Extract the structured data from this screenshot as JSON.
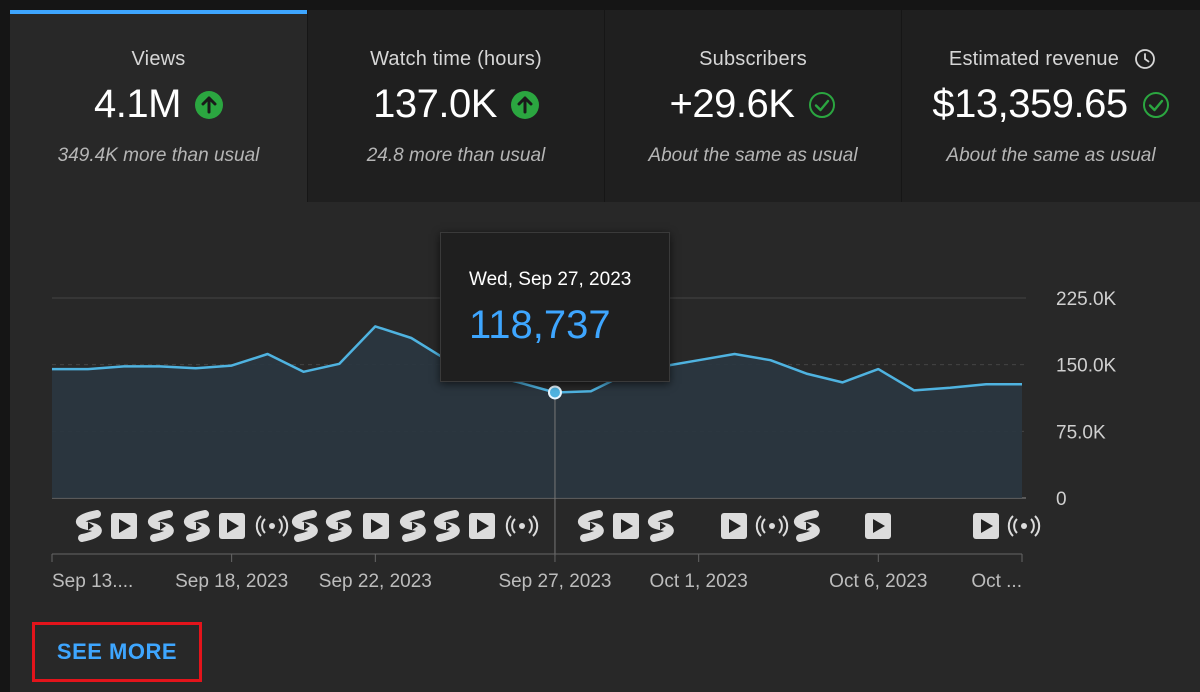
{
  "metrics": [
    {
      "label": "Views",
      "value": "4.1M",
      "note": "349.4K more than usual",
      "status": "up"
    },
    {
      "label": "Watch time (hours)",
      "value": "137.0K",
      "note": "24.8 more than usual",
      "status": "up"
    },
    {
      "label": "Subscribers",
      "value": "+29.6K",
      "note": "About the same as usual",
      "status": "same"
    },
    {
      "label": "Estimated revenue",
      "value": "$13,359.65",
      "note": "About the same as usual",
      "status": "same"
    }
  ],
  "tooltip": {
    "date": "Wed, Sep 27, 2023",
    "value": "118,737"
  },
  "see_more_label": "SEE MORE",
  "colors": {
    "accent": "#3ea6ff",
    "up": "#2ba640",
    "check": "#2ba640",
    "line": "#4fb3e0",
    "highlight": "#e3141b"
  },
  "chart_data": {
    "type": "area",
    "y_ticks": [
      "225.0K",
      "150.0K",
      "75.0K",
      "0"
    ],
    "ylim": [
      0,
      225000
    ],
    "x_tick_labels": [
      "Sep 13....",
      "Sep 18, 2023",
      "Sep 22, 2023",
      "Sep 27, 2023",
      "Oct 1, 2023",
      "Oct 6, 2023",
      "Oct ..."
    ],
    "dates": [
      "2023-09-13",
      "2023-09-14",
      "2023-09-15",
      "2023-09-16",
      "2023-09-17",
      "2023-09-18",
      "2023-09-19",
      "2023-09-20",
      "2023-09-21",
      "2023-09-22",
      "2023-09-23",
      "2023-09-24",
      "2023-09-25",
      "2023-09-26",
      "2023-09-27",
      "2023-09-28",
      "2023-09-29",
      "2023-09-30",
      "2023-10-01",
      "2023-10-02",
      "2023-10-03",
      "2023-10-04",
      "2023-10-05",
      "2023-10-06",
      "2023-10-07",
      "2023-10-08",
      "2023-10-09",
      "2023-10-10"
    ],
    "values": [
      145000,
      145000,
      148000,
      148000,
      146000,
      149000,
      162000,
      142000,
      151000,
      193000,
      180000,
      155000,
      140000,
      130000,
      118737,
      120000,
      140000,
      148000,
      155000,
      162000,
      155000,
      140000,
      130000,
      145000,
      121000,
      124000,
      128000,
      128000
    ],
    "highlight_date": "2023-09-27",
    "event_markers": [
      "short",
      "video",
      "short",
      "short",
      "video",
      "live",
      "short",
      "short",
      "video",
      "short",
      "short",
      "video",
      "live",
      "short",
      "video",
      "short",
      "video",
      "live",
      "short",
      "video",
      "video",
      "live"
    ]
  }
}
